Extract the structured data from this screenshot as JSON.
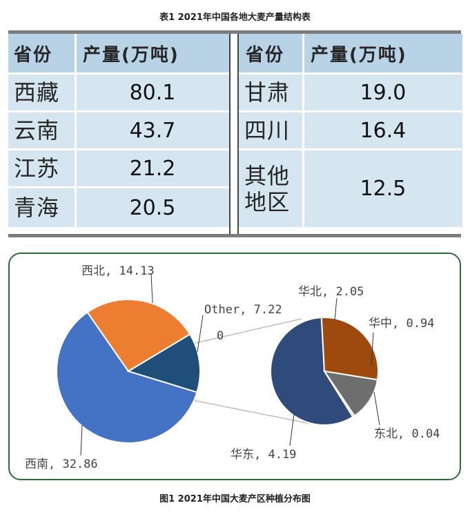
{
  "table_caption": "表1  2021年中国各地大麦产量结构表",
  "figure_caption": "图1 2021年中国大麦产区种植分布图",
  "table": {
    "headers": {
      "province": "省份",
      "output": "产量(万吨)"
    },
    "left_rows": [
      {
        "province": "西藏",
        "output": "80.1"
      },
      {
        "province": "云南",
        "output": "43.7"
      },
      {
        "province": "江苏",
        "output": "21.2"
      },
      {
        "province": "青海",
        "output": "20.5"
      }
    ],
    "right_rows": [
      {
        "province": "甘肃",
        "output": "19.0"
      },
      {
        "province": "四川",
        "output": "16.4"
      },
      {
        "province": "其他地区",
        "province_line1": "其他",
        "province_line2": "地区",
        "output": "12.5"
      }
    ]
  },
  "chart_data": {
    "type": "pie",
    "subtype": "pie-of-pie",
    "main_pie": {
      "slices": [
        {
          "name": "西南",
          "value": 32.86,
          "label": "西南, 32.86",
          "color": "#4472c4"
        },
        {
          "name": "西北",
          "value": 14.13,
          "label": "西北, 14.13",
          "color": "#ed7d31"
        },
        {
          "name": "Other",
          "value": 7.22,
          "label": "Other, 7.22",
          "color": "#1f4e79"
        }
      ]
    },
    "secondary_pie": {
      "slices": [
        {
          "name": "华东",
          "value": 4.19,
          "label": "华东, 4.19",
          "color": "#2f4b7c"
        },
        {
          "name": "华北",
          "value": 2.05,
          "label": "华北, 2.05",
          "color": "#9e4a0e"
        },
        {
          "name": "华中",
          "value": 0.94,
          "label": "华中, 0.94",
          "color": "#6e6e6e"
        },
        {
          "name": "东北",
          "value": 0.04,
          "label": "东北, 0.04",
          "color": "#8fa9d6"
        }
      ]
    },
    "extra_label": "0",
    "legend": "none",
    "grid": false
  }
}
